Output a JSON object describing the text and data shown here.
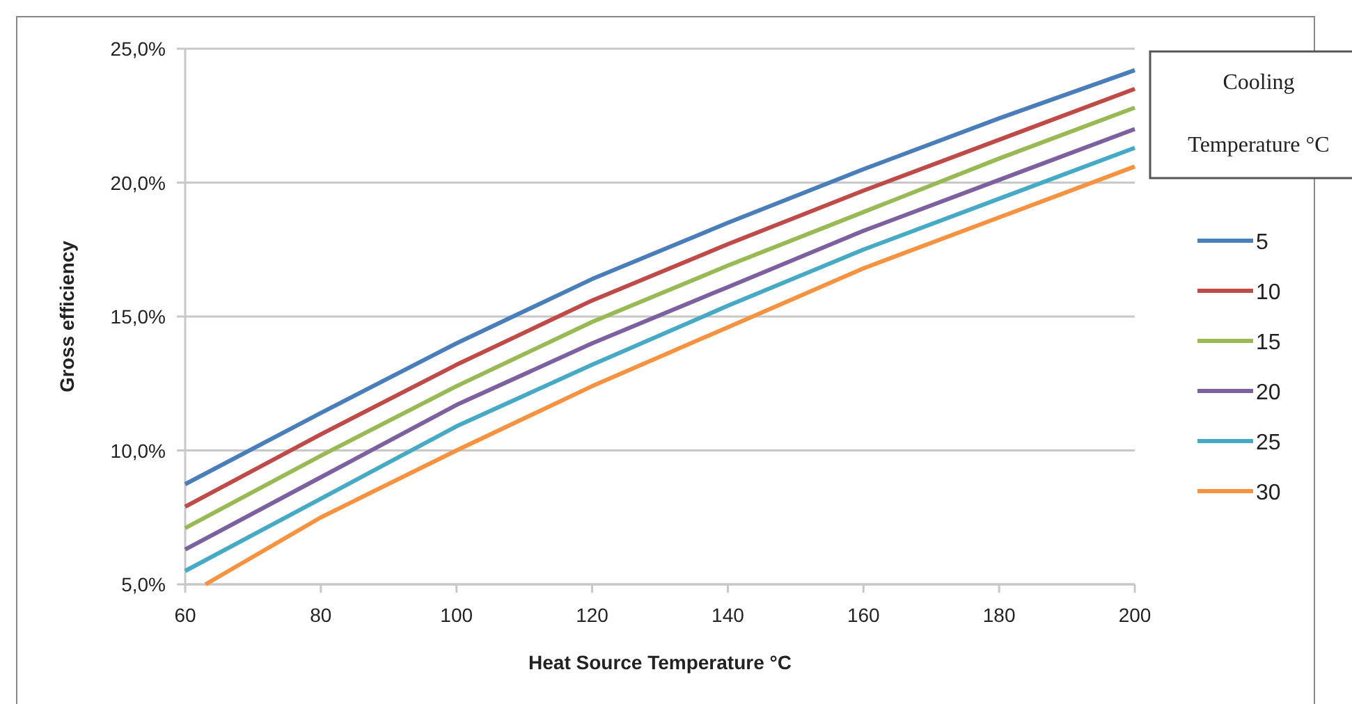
{
  "chart_data": {
    "type": "line",
    "xlabel": "Heat Source Temperature °C",
    "ylabel": "Gross efficiency",
    "legend_title": "Cooling Temperature °C",
    "legend": "right",
    "grid": "y",
    "marker": "none",
    "line_style": "solid",
    "x": [
      60,
      80,
      100,
      120,
      140,
      160,
      180,
      200
    ],
    "xlim": [
      60,
      200
    ],
    "xticks": [
      60,
      80,
      100,
      120,
      140,
      160,
      180,
      200
    ],
    "ylim": [
      5,
      25
    ],
    "yticks": [
      {
        "value": 5,
        "label": "5,0%"
      },
      {
        "value": 10,
        "label": "10,0%"
      },
      {
        "value": 15,
        "label": "15,0%"
      },
      {
        "value": 20,
        "label": "20,0%"
      },
      {
        "value": 25,
        "label": "25,0%"
      }
    ],
    "series": [
      {
        "name": "5",
        "color": "#4a7ebb",
        "values": [
          8.74,
          11.4,
          14.0,
          16.4,
          18.5,
          20.5,
          22.4,
          24.2
        ]
      },
      {
        "name": "10",
        "color": "#be4b48",
        "values": [
          7.9,
          10.6,
          13.2,
          15.6,
          17.7,
          19.7,
          21.6,
          23.5
        ]
      },
      {
        "name": "15",
        "color": "#98b954",
        "values": [
          7.1,
          9.8,
          12.4,
          14.8,
          16.9,
          18.9,
          20.9,
          22.8
        ]
      },
      {
        "name": "20",
        "color": "#7d60a0",
        "values": [
          6.3,
          9.0,
          11.7,
          14.0,
          16.1,
          18.2,
          20.1,
          22.0
        ]
      },
      {
        "name": "25",
        "color": "#46aac5",
        "values": [
          5.5,
          8.2,
          10.9,
          13.2,
          15.4,
          17.5,
          19.4,
          21.3
        ]
      },
      {
        "name": "30",
        "color": "#f69240",
        "x": [
          63,
          80,
          100,
          120,
          140,
          160,
          180,
          200
        ],
        "values": [
          5.0,
          7.5,
          10.0,
          12.4,
          14.6,
          16.8,
          18.7,
          20.6
        ]
      }
    ]
  }
}
